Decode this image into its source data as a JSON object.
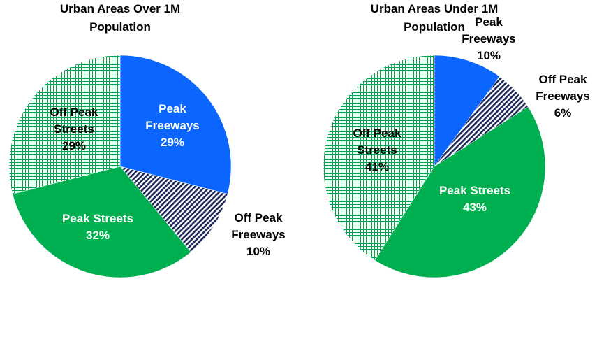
{
  "chart_data": [
    {
      "type": "pie",
      "title": "Urban Areas Over 1M Population",
      "categories": [
        "Peak Freeways",
        "Off Peak Freeways",
        "Peak Streets",
        "Off Peak Streets"
      ],
      "values": [
        29,
        10,
        32,
        29
      ],
      "value_labels": [
        "29%",
        "10%",
        "32%",
        "29%"
      ],
      "colors": [
        "#0a66ff",
        "hatch",
        "#00b050",
        "grid"
      ],
      "label_colors": [
        "#ffffff",
        "#000000",
        "#ffffff",
        "#000000"
      ]
    },
    {
      "type": "pie",
      "title": "Urban Areas Under 1M Population",
      "categories": [
        "Peak Freeways",
        "Off Peak Freeways",
        "Peak Streets",
        "Off Peak Streets"
      ],
      "values": [
        10,
        6,
        43,
        41
      ],
      "value_labels": [
        "10%",
        "6%",
        "43%",
        "41%"
      ],
      "colors": [
        "#0a66ff",
        "hatch",
        "#00b050",
        "grid"
      ],
      "label_colors": [
        "#000000",
        "#000000",
        "#ffffff",
        "#000000"
      ]
    }
  ]
}
